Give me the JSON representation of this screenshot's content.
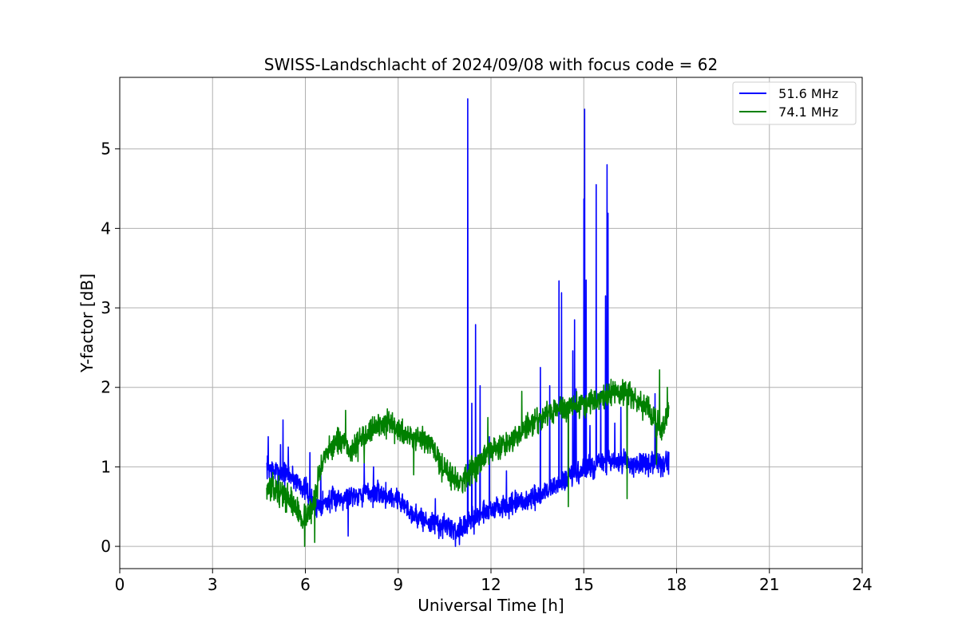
{
  "chart_data": {
    "type": "line",
    "title": "SWISS-Landschlacht of 2024/09/08 with focus code = 62",
    "xlabel": "Universal Time [h]",
    "ylabel": "Y-factor [dB]",
    "xlim": [
      0,
      24
    ],
    "ylim": [
      -0.28,
      5.9
    ],
    "xticks": [
      0,
      3,
      6,
      9,
      12,
      15,
      18,
      21,
      24
    ],
    "yticks": [
      0,
      1,
      2,
      3,
      4,
      5
    ],
    "grid": true,
    "legend_position": "upper-right",
    "series": [
      {
        "name": "  51.6 MHz",
        "color": "#0000ff",
        "baseline": [
          [
            4.75,
            1.0
          ],
          [
            5.0,
            0.95
          ],
          [
            5.5,
            0.9
          ],
          [
            6.0,
            0.72
          ],
          [
            6.3,
            0.5
          ],
          [
            6.6,
            0.55
          ],
          [
            7.0,
            0.6
          ],
          [
            7.5,
            0.65
          ],
          [
            8.0,
            0.68
          ],
          [
            8.5,
            0.65
          ],
          [
            9.0,
            0.6
          ],
          [
            9.5,
            0.4
          ],
          [
            10.0,
            0.3
          ],
          [
            10.5,
            0.25
          ],
          [
            10.9,
            0.2
          ],
          [
            11.3,
            0.3
          ],
          [
            11.8,
            0.45
          ],
          [
            12.5,
            0.5
          ],
          [
            13.0,
            0.55
          ],
          [
            13.5,
            0.62
          ],
          [
            14.0,
            0.75
          ],
          [
            14.5,
            0.85
          ],
          [
            15.0,
            0.95
          ],
          [
            15.5,
            1.05
          ],
          [
            16.0,
            1.05
          ],
          [
            16.5,
            1.05
          ],
          [
            17.0,
            1.02
          ],
          [
            17.5,
            1.05
          ],
          [
            17.75,
            1.05
          ]
        ],
        "noise": 0.09,
        "spikes": [
          [
            4.8,
            1.38
          ],
          [
            5.2,
            1.28
          ],
          [
            5.28,
            1.59
          ],
          [
            5.45,
            1.25
          ],
          [
            6.15,
            1.18
          ],
          [
            6.5,
            0.98
          ],
          [
            7.38,
            0.13
          ],
          [
            7.9,
            1.05
          ],
          [
            8.2,
            1.0
          ],
          [
            10.2,
            0.6
          ],
          [
            10.85,
            0.0
          ],
          [
            11.25,
            5.63
          ],
          [
            11.38,
            1.8
          ],
          [
            11.5,
            2.79
          ],
          [
            11.65,
            2.02
          ],
          [
            11.95,
            1.38
          ],
          [
            12.5,
            0.95
          ],
          [
            13.6,
            2.25
          ],
          [
            13.9,
            2.02
          ],
          [
            14.2,
            3.34
          ],
          [
            14.28,
            3.19
          ],
          [
            14.5,
            1.6
          ],
          [
            14.65,
            2.46
          ],
          [
            14.7,
            2.85
          ],
          [
            14.75,
            1.98
          ],
          [
            15.0,
            4.37
          ],
          [
            15.03,
            5.5
          ],
          [
            15.08,
            3.35
          ],
          [
            15.2,
            1.52
          ],
          [
            15.4,
            4.55
          ],
          [
            15.55,
            1.95
          ],
          [
            15.7,
            3.15
          ],
          [
            15.75,
            4.8
          ],
          [
            15.78,
            4.19
          ],
          [
            16.0,
            1.55
          ],
          [
            16.2,
            1.75
          ],
          [
            17.3,
            1.92
          ]
        ],
        "seed": 7
      },
      {
        "name": "  74.1 MHz",
        "color": "#008000",
        "baseline": [
          [
            4.75,
            0.75
          ],
          [
            5.0,
            0.72
          ],
          [
            5.5,
            0.6
          ],
          [
            5.9,
            0.35
          ],
          [
            6.2,
            0.45
          ],
          [
            6.5,
            1.0
          ],
          [
            7.0,
            1.35
          ],
          [
            7.5,
            1.2
          ],
          [
            8.0,
            1.45
          ],
          [
            8.5,
            1.55
          ],
          [
            9.0,
            1.45
          ],
          [
            9.5,
            1.38
          ],
          [
            10.0,
            1.3
          ],
          [
            10.5,
            0.95
          ],
          [
            11.0,
            0.82
          ],
          [
            11.5,
            1.0
          ],
          [
            12.0,
            1.2
          ],
          [
            12.5,
            1.3
          ],
          [
            13.0,
            1.45
          ],
          [
            13.5,
            1.6
          ],
          [
            14.0,
            1.7
          ],
          [
            14.5,
            1.75
          ],
          [
            15.0,
            1.8
          ],
          [
            15.5,
            1.85
          ],
          [
            16.0,
            1.95
          ],
          [
            16.5,
            1.9
          ],
          [
            17.0,
            1.75
          ],
          [
            17.5,
            1.45
          ],
          [
            17.75,
            1.7
          ]
        ],
        "noise": 0.1,
        "spikes": [
          [
            5.98,
            0.0
          ],
          [
            6.3,
            0.05
          ],
          [
            7.3,
            1.71
          ],
          [
            7.9,
            1.05
          ],
          [
            8.65,
            1.73
          ],
          [
            9.5,
            0.9
          ],
          [
            11.9,
            1.62
          ],
          [
            13.0,
            1.95
          ],
          [
            14.5,
            0.5
          ],
          [
            16.4,
            0.6
          ],
          [
            17.35,
            1.03
          ],
          [
            17.45,
            2.22
          ],
          [
            17.7,
            2.0
          ]
        ],
        "seed": 13
      }
    ]
  }
}
